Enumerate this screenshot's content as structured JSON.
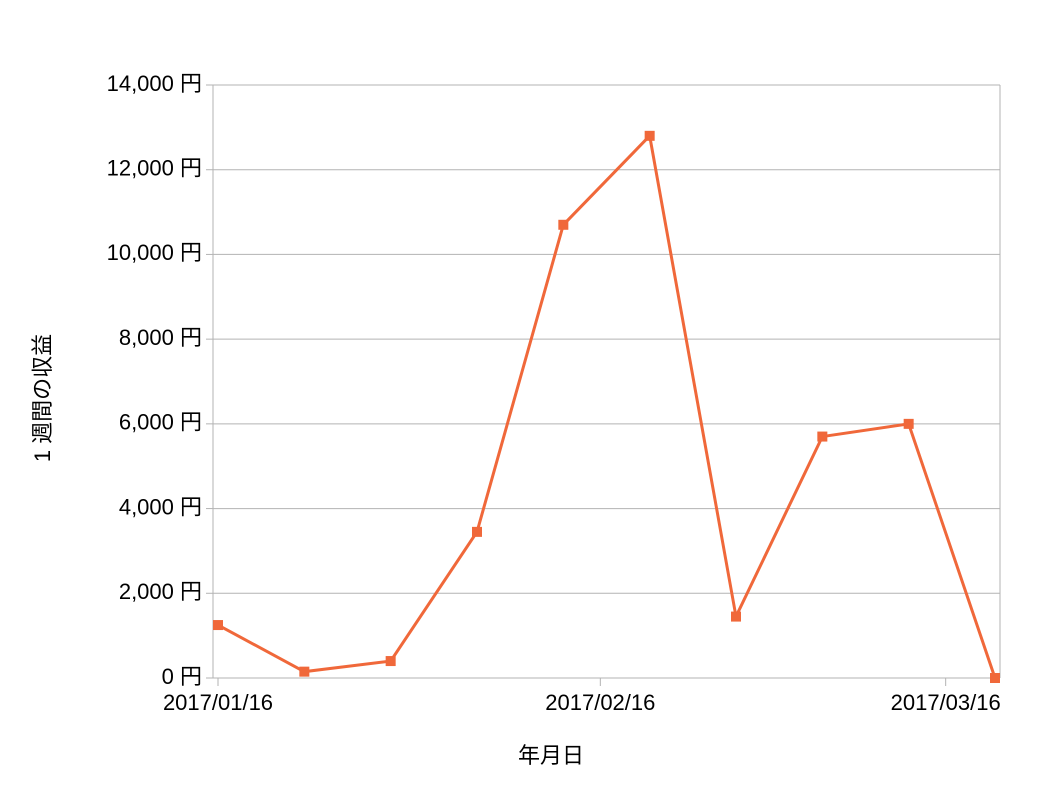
{
  "chart_data": {
    "type": "line",
    "x_label": "年月日",
    "y_label": "1 週間の収益",
    "x": [
      "2017/01/16",
      "2017/01/23",
      "2017/01/30",
      "2017/02/06",
      "2017/02/13",
      "2017/02/20",
      "2017/02/27",
      "2017/03/06",
      "2017/03/13",
      "2017/03/20"
    ],
    "series": [
      {
        "color": "#f0683a",
        "values": [
          1250,
          150,
          400,
          3450,
          10700,
          12800,
          1450,
          5700,
          6000,
          0
        ]
      }
    ],
    "xlim": [
      "2017/01/16",
      "2017/03/20"
    ],
    "xticks": [
      "2017/01/16",
      "2017/02/16",
      "2017/03/16"
    ],
    "ylim": [
      0,
      14000
    ],
    "yticks": [
      {
        "value": 0,
        "label": "0 円"
      },
      {
        "value": 2000,
        "label": "2,000 円"
      },
      {
        "value": 4000,
        "label": "4,000 円"
      },
      {
        "value": 6000,
        "label": "6,000 円"
      },
      {
        "value": 8000,
        "label": "8,000 円"
      },
      {
        "value": 10000,
        "label": "10,000 円"
      },
      {
        "value": 12000,
        "label": "12,000 円"
      },
      {
        "value": 14000,
        "label": "14,000 円"
      }
    ],
    "grid": true
  }
}
